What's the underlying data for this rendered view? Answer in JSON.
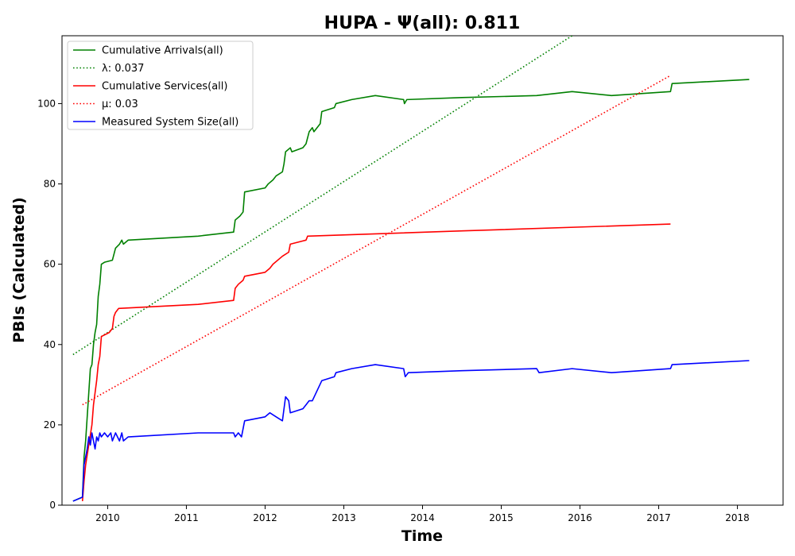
{
  "chart_data": {
    "type": "line",
    "title": "HUPA -  Ψ(all): 0.811",
    "xlabel": "Time",
    "ylabel": "PBIs (Calculated)",
    "xlim": [
      2009.42,
      2018.58
    ],
    "ylim": [
      0,
      116.9
    ],
    "x_ticks": [
      2010,
      2011,
      2012,
      2013,
      2014,
      2015,
      2016,
      2017,
      2018
    ],
    "y_ticks": [
      0,
      20,
      40,
      60,
      80,
      100
    ],
    "grid": false,
    "legend_position": "top-left",
    "series": [
      {
        "name": "Cumulative Arrivals(all)",
        "color": "#008000",
        "style": "solid",
        "points": [
          [
            2009.56,
            1
          ],
          [
            2009.68,
            2
          ],
          [
            2009.7,
            12
          ],
          [
            2009.72,
            16
          ],
          [
            2009.74,
            22
          ],
          [
            2009.76,
            28
          ],
          [
            2009.78,
            34
          ],
          [
            2009.8,
            35
          ],
          [
            2009.82,
            40
          ],
          [
            2009.84,
            43
          ],
          [
            2009.86,
            45
          ],
          [
            2009.88,
            52
          ],
          [
            2009.9,
            55
          ],
          [
            2009.92,
            60
          ],
          [
            2009.96,
            60.5
          ],
          [
            2010.06,
            61
          ],
          [
            2010.1,
            64
          ],
          [
            2010.15,
            65
          ],
          [
            2010.18,
            66
          ],
          [
            2010.2,
            65
          ],
          [
            2010.26,
            66
          ],
          [
            2011.15,
            67
          ],
          [
            2011.6,
            68
          ],
          [
            2011.62,
            71
          ],
          [
            2011.68,
            72
          ],
          [
            2011.72,
            73
          ],
          [
            2011.74,
            78
          ],
          [
            2012.0,
            79
          ],
          [
            2012.04,
            80
          ],
          [
            2012.1,
            81
          ],
          [
            2012.14,
            82
          ],
          [
            2012.22,
            83
          ],
          [
            2012.24,
            85
          ],
          [
            2012.26,
            88
          ],
          [
            2012.32,
            89
          ],
          [
            2012.34,
            88
          ],
          [
            2012.48,
            89
          ],
          [
            2012.52,
            90
          ],
          [
            2012.56,
            93
          ],
          [
            2012.6,
            94
          ],
          [
            2012.62,
            93
          ],
          [
            2012.7,
            95
          ],
          [
            2012.72,
            98
          ],
          [
            2012.88,
            99
          ],
          [
            2012.9,
            100
          ],
          [
            2013.1,
            101
          ],
          [
            2013.4,
            102
          ],
          [
            2013.76,
            101
          ],
          [
            2013.77,
            100
          ],
          [
            2013.8,
            101
          ],
          [
            2014.5,
            101.5
          ],
          [
            2015.45,
            102
          ],
          [
            2015.9,
            103
          ],
          [
            2016.4,
            102
          ],
          [
            2017.15,
            103
          ],
          [
            2017.17,
            105
          ],
          [
            2018.15,
            106
          ]
        ]
      },
      {
        "name": "λ: 0.037",
        "color": "#008000",
        "style": "dotted",
        "points": [
          [
            2009.56,
            37.5
          ],
          [
            2015.9,
            116.9
          ]
        ]
      },
      {
        "name": "Cumulative Services(all)",
        "color": "#ff0000",
        "style": "solid",
        "points": [
          [
            2009.68,
            1
          ],
          [
            2009.7,
            6
          ],
          [
            2009.72,
            10
          ],
          [
            2009.76,
            15
          ],
          [
            2009.8,
            20
          ],
          [
            2009.82,
            25
          ],
          [
            2009.86,
            31
          ],
          [
            2009.88,
            35
          ],
          [
            2009.9,
            37
          ],
          [
            2009.92,
            42
          ],
          [
            2010.02,
            43
          ],
          [
            2010.06,
            44
          ],
          [
            2010.08,
            47
          ],
          [
            2010.1,
            48
          ],
          [
            2010.14,
            49
          ],
          [
            2011.15,
            50
          ],
          [
            2011.6,
            51
          ],
          [
            2011.62,
            54
          ],
          [
            2011.66,
            55
          ],
          [
            2011.72,
            56
          ],
          [
            2011.74,
            57
          ],
          [
            2012.0,
            58
          ],
          [
            2012.06,
            59
          ],
          [
            2012.1,
            60
          ],
          [
            2012.22,
            62
          ],
          [
            2012.3,
            63
          ],
          [
            2012.32,
            65
          ],
          [
            2012.52,
            66
          ],
          [
            2012.54,
            67
          ],
          [
            2014.5,
            68.3
          ],
          [
            2017.15,
            70
          ]
        ]
      },
      {
        "name": "μ: 0.03",
        "color": "#ff0000",
        "style": "dotted",
        "points": [
          [
            2009.68,
            25
          ],
          [
            2017.15,
            107
          ]
        ]
      },
      {
        "name": "Measured System Size(all)",
        "color": "#0000ff",
        "style": "solid",
        "points": [
          [
            2009.56,
            1
          ],
          [
            2009.68,
            2
          ],
          [
            2009.7,
            10
          ],
          [
            2009.72,
            12
          ],
          [
            2009.74,
            14
          ],
          [
            2009.76,
            17
          ],
          [
            2009.78,
            15
          ],
          [
            2009.8,
            18
          ],
          [
            2009.82,
            16
          ],
          [
            2009.84,
            14
          ],
          [
            2009.86,
            17
          ],
          [
            2009.88,
            16
          ],
          [
            2009.9,
            18
          ],
          [
            2009.92,
            17
          ],
          [
            2009.96,
            18
          ],
          [
            2010.0,
            17
          ],
          [
            2010.04,
            18
          ],
          [
            2010.06,
            16
          ],
          [
            2010.1,
            18
          ],
          [
            2010.15,
            16
          ],
          [
            2010.18,
            18
          ],
          [
            2010.2,
            16
          ],
          [
            2010.26,
            17
          ],
          [
            2011.15,
            18
          ],
          [
            2011.6,
            18
          ],
          [
            2011.62,
            17
          ],
          [
            2011.66,
            18
          ],
          [
            2011.7,
            17
          ],
          [
            2011.74,
            21
          ],
          [
            2012.0,
            22
          ],
          [
            2012.06,
            23
          ],
          [
            2012.14,
            22
          ],
          [
            2012.22,
            21
          ],
          [
            2012.26,
            27
          ],
          [
            2012.3,
            26
          ],
          [
            2012.32,
            23
          ],
          [
            2012.48,
            24
          ],
          [
            2012.52,
            25
          ],
          [
            2012.56,
            26
          ],
          [
            2012.6,
            26
          ],
          [
            2012.72,
            31
          ],
          [
            2012.88,
            32
          ],
          [
            2012.9,
            33
          ],
          [
            2013.1,
            34
          ],
          [
            2013.4,
            35
          ],
          [
            2013.76,
            34
          ],
          [
            2013.78,
            32
          ],
          [
            2013.82,
            33
          ],
          [
            2014.5,
            33.5
          ],
          [
            2015.45,
            34
          ],
          [
            2015.48,
            33
          ],
          [
            2015.9,
            34
          ],
          [
            2016.4,
            33
          ],
          [
            2017.15,
            34
          ],
          [
            2017.17,
            35
          ],
          [
            2018.15,
            36
          ]
        ]
      }
    ]
  }
}
